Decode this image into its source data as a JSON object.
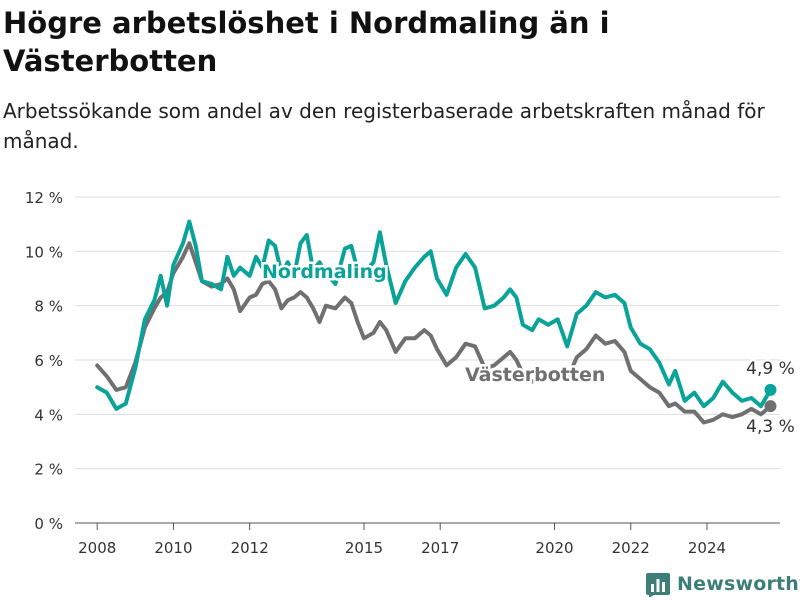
{
  "header": {
    "title": "Högre arbetslöshet i Nordmaling än i Västerbotten",
    "subtitle": "Arbetssökande som andel av den registerbaserade arbetskraften månad för månad."
  },
  "brand": {
    "name": "Newsworthy",
    "icon": "bar-chart-icon",
    "color": "#3d7f78"
  },
  "chart_data": {
    "type": "line",
    "title": "Högre arbetslöshet i Nordmaling än i Västerbotten",
    "subtitle": "Arbetssökande som andel av den registerbaserade arbetskraften månad för månad.",
    "xlabel": "",
    "ylabel": "",
    "x_range": [
      "2007-06",
      "2025-12"
    ],
    "ylim": [
      0,
      12
    ],
    "y_ticks": [
      0,
      2,
      4,
      6,
      8,
      10,
      12
    ],
    "y_tick_labels": [
      "0 %",
      "2 %",
      "4 %",
      "6 %",
      "8 %",
      "10 %",
      "12 %"
    ],
    "x_ticks": [
      "2008",
      "2010",
      "2012",
      "2015",
      "2017",
      "2020",
      "2022",
      "2024"
    ],
    "grid": true,
    "legend": "inline labels",
    "series": [
      {
        "name": "Nordmaling",
        "color": "#0aa39a",
        "end_label": "4,9 %",
        "points": [
          [
            "2008-01",
            5.0
          ],
          [
            "2008-04",
            4.8
          ],
          [
            "2008-07",
            4.2
          ],
          [
            "2008-10",
            4.4
          ],
          [
            "2009-01",
            5.7
          ],
          [
            "2009-04",
            7.5
          ],
          [
            "2009-07",
            8.2
          ],
          [
            "2009-09",
            9.1
          ],
          [
            "2009-11",
            8.0
          ],
          [
            "2010-01",
            9.5
          ],
          [
            "2010-04",
            10.3
          ],
          [
            "2010-06",
            11.1
          ],
          [
            "2010-08",
            10.2
          ],
          [
            "2010-10",
            8.9
          ],
          [
            "2011-01",
            8.8
          ],
          [
            "2011-04",
            8.6
          ],
          [
            "2011-06",
            9.8
          ],
          [
            "2011-08",
            9.1
          ],
          [
            "2011-10",
            9.4
          ],
          [
            "2012-01",
            9.1
          ],
          [
            "2012-03",
            9.8
          ],
          [
            "2012-05",
            9.4
          ],
          [
            "2012-07",
            10.4
          ],
          [
            "2012-09",
            10.2
          ],
          [
            "2012-11",
            9.2
          ],
          [
            "2013-01",
            9.6
          ],
          [
            "2013-03",
            9.1
          ],
          [
            "2013-05",
            10.3
          ],
          [
            "2013-07",
            10.6
          ],
          [
            "2013-09",
            9.3
          ],
          [
            "2013-11",
            9.6
          ],
          [
            "2014-01",
            9.2
          ],
          [
            "2014-04",
            8.8
          ],
          [
            "2014-07",
            10.1
          ],
          [
            "2014-09",
            10.2
          ],
          [
            "2014-11",
            9.3
          ],
          [
            "2015-01",
            9.2
          ],
          [
            "2015-04",
            9.6
          ],
          [
            "2015-06",
            10.7
          ],
          [
            "2015-08",
            9.5
          ],
          [
            "2015-11",
            8.1
          ],
          [
            "2016-02",
            8.9
          ],
          [
            "2016-05",
            9.4
          ],
          [
            "2016-08",
            9.8
          ],
          [
            "2016-10",
            10.0
          ],
          [
            "2016-12",
            9.0
          ],
          [
            "2017-03",
            8.4
          ],
          [
            "2017-06",
            9.4
          ],
          [
            "2017-09",
            9.9
          ],
          [
            "2017-12",
            9.4
          ],
          [
            "2018-03",
            7.9
          ],
          [
            "2018-06",
            8.0
          ],
          [
            "2018-09",
            8.3
          ],
          [
            "2018-11",
            8.6
          ],
          [
            "2019-01",
            8.3
          ],
          [
            "2019-03",
            7.3
          ],
          [
            "2019-06",
            7.1
          ],
          [
            "2019-08",
            7.5
          ],
          [
            "2019-11",
            7.3
          ],
          [
            "2020-02",
            7.5
          ],
          [
            "2020-05",
            6.5
          ],
          [
            "2020-08",
            7.7
          ],
          [
            "2020-11",
            8.0
          ],
          [
            "2021-02",
            8.5
          ],
          [
            "2021-05",
            8.3
          ],
          [
            "2021-08",
            8.4
          ],
          [
            "2021-11",
            8.1
          ],
          [
            "2022-01",
            7.2
          ],
          [
            "2022-04",
            6.6
          ],
          [
            "2022-07",
            6.4
          ],
          [
            "2022-10",
            5.9
          ],
          [
            "2023-01",
            5.1
          ],
          [
            "2023-03",
            5.6
          ],
          [
            "2023-06",
            4.5
          ],
          [
            "2023-09",
            4.8
          ],
          [
            "2023-12",
            4.3
          ],
          [
            "2024-03",
            4.6
          ],
          [
            "2024-06",
            5.2
          ],
          [
            "2024-09",
            4.8
          ],
          [
            "2024-12",
            4.5
          ],
          [
            "2025-03",
            4.6
          ],
          [
            "2025-06",
            4.3
          ],
          [
            "2025-09",
            4.9
          ]
        ]
      },
      {
        "name": "Västerbotten",
        "color": "#707070",
        "end_label": "4,3 %",
        "points": [
          [
            "2008-01",
            5.8
          ],
          [
            "2008-04",
            5.4
          ],
          [
            "2008-07",
            4.9
          ],
          [
            "2008-10",
            5.0
          ],
          [
            "2009-01",
            5.9
          ],
          [
            "2009-04",
            7.2
          ],
          [
            "2009-07",
            7.9
          ],
          [
            "2009-09",
            8.3
          ],
          [
            "2009-11",
            8.5
          ],
          [
            "2010-01",
            9.2
          ],
          [
            "2010-04",
            9.8
          ],
          [
            "2010-06",
            10.3
          ],
          [
            "2010-08",
            9.6
          ],
          [
            "2010-10",
            8.9
          ],
          [
            "2011-01",
            8.7
          ],
          [
            "2011-04",
            8.8
          ],
          [
            "2011-06",
            9.0
          ],
          [
            "2011-08",
            8.6
          ],
          [
            "2011-10",
            7.8
          ],
          [
            "2012-01",
            8.3
          ],
          [
            "2012-03",
            8.4
          ],
          [
            "2012-05",
            8.8
          ],
          [
            "2012-07",
            8.9
          ],
          [
            "2012-09",
            8.6
          ],
          [
            "2012-11",
            7.9
          ],
          [
            "2013-01",
            8.2
          ],
          [
            "2013-03",
            8.3
          ],
          [
            "2013-05",
            8.5
          ],
          [
            "2013-07",
            8.3
          ],
          [
            "2013-09",
            7.9
          ],
          [
            "2013-11",
            7.4
          ],
          [
            "2014-01",
            8.0
          ],
          [
            "2014-04",
            7.9
          ],
          [
            "2014-07",
            8.3
          ],
          [
            "2014-09",
            8.1
          ],
          [
            "2014-11",
            7.4
          ],
          [
            "2015-01",
            6.8
          ],
          [
            "2015-04",
            7.0
          ],
          [
            "2015-06",
            7.4
          ],
          [
            "2015-08",
            7.1
          ],
          [
            "2015-11",
            6.3
          ],
          [
            "2016-02",
            6.8
          ],
          [
            "2016-05",
            6.8
          ],
          [
            "2016-08",
            7.1
          ],
          [
            "2016-10",
            6.9
          ],
          [
            "2016-12",
            6.4
          ],
          [
            "2017-03",
            5.8
          ],
          [
            "2017-06",
            6.1
          ],
          [
            "2017-09",
            6.6
          ],
          [
            "2017-12",
            6.5
          ],
          [
            "2018-03",
            5.7
          ],
          [
            "2018-06",
            5.8
          ],
          [
            "2018-09",
            6.1
          ],
          [
            "2018-11",
            6.3
          ],
          [
            "2019-01",
            6.0
          ],
          [
            "2019-03",
            5.5
          ],
          [
            "2019-06",
            5.2
          ],
          [
            "2019-08",
            5.3
          ],
          [
            "2019-11",
            5.4
          ],
          [
            "2020-02",
            5.6
          ],
          [
            "2020-05",
            5.3
          ],
          [
            "2020-08",
            6.1
          ],
          [
            "2020-11",
            6.4
          ],
          [
            "2021-02",
            6.9
          ],
          [
            "2021-05",
            6.6
          ],
          [
            "2021-08",
            6.7
          ],
          [
            "2021-11",
            6.3
          ],
          [
            "2022-01",
            5.6
          ],
          [
            "2022-04",
            5.3
          ],
          [
            "2022-07",
            5.0
          ],
          [
            "2022-10",
            4.8
          ],
          [
            "2023-01",
            4.3
          ],
          [
            "2023-03",
            4.4
          ],
          [
            "2023-06",
            4.1
          ],
          [
            "2023-09",
            4.1
          ],
          [
            "2023-12",
            3.7
          ],
          [
            "2024-03",
            3.8
          ],
          [
            "2024-06",
            4.0
          ],
          [
            "2024-09",
            3.9
          ],
          [
            "2024-12",
            4.0
          ],
          [
            "2025-03",
            4.2
          ],
          [
            "2025-06",
            4.0
          ],
          [
            "2025-09",
            4.3
          ]
        ]
      }
    ]
  }
}
